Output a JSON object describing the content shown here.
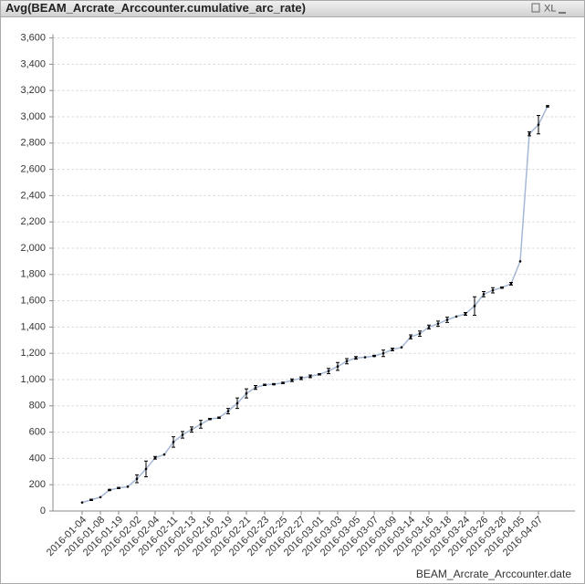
{
  "toolbar": {
    "xl": "XL"
  },
  "chart_data": {
    "type": "line",
    "title": "Avg(BEAM_Arcrate_Arccounter.cumulative_arc_rate)",
    "x_label": "BEAM_Arcrate_Arccounter.date",
    "categories": [
      "2016-01-04",
      null,
      "2016-01-08",
      null,
      "2016-01-19",
      null,
      "2016-02-02",
      null,
      "2016-02-04",
      null,
      "2016-02-11",
      null,
      "2016-02-13",
      null,
      "2016-02-16",
      null,
      "2016-02-19",
      null,
      "2016-02-21",
      null,
      "2016-02-23",
      null,
      "2016-02-25",
      null,
      "2016-02-27",
      null,
      "2016-03-01",
      null,
      "2016-03-03",
      null,
      "2016-03-05",
      null,
      "2016-03-07",
      null,
      "2016-03-09",
      null,
      "2016-03-14",
      null,
      "2016-03-16",
      null,
      "2016-03-18",
      null,
      "2016-03-24",
      null,
      "2016-03-26",
      null,
      "2016-03-28",
      null,
      "2016-04-05",
      null,
      "2016-04-07",
      null
    ],
    "values": [
      65,
      85,
      105,
      160,
      175,
      185,
      245,
      320,
      405,
      430,
      525,
      580,
      620,
      660,
      700,
      710,
      760,
      820,
      895,
      940,
      960,
      965,
      975,
      995,
      1010,
      1025,
      1040,
      1065,
      1100,
      1140,
      1165,
      1170,
      1180,
      1200,
      1230,
      1245,
      1325,
      1350,
      1400,
      1425,
      1455,
      1480,
      1500,
      1560,
      1650,
      1680,
      1700,
      1730,
      1900,
      2870,
      2940,
      3080
    ],
    "errors": [
      0,
      5,
      0,
      5,
      5,
      0,
      30,
      60,
      10,
      0,
      40,
      25,
      20,
      30,
      5,
      5,
      20,
      40,
      35,
      15,
      5,
      5,
      5,
      10,
      10,
      10,
      5,
      20,
      30,
      20,
      10,
      0,
      5,
      25,
      10,
      0,
      15,
      20,
      15,
      20,
      20,
      0,
      10,
      70,
      20,
      20,
      5,
      10,
      0,
      15,
      70,
      5
    ],
    "color": "#a6b8d6",
    "ylim": [
      0,
      3600
    ],
    "yticks": [
      0,
      200,
      400,
      600,
      800,
      {
        "value": 1000,
        "label": "1,000"
      },
      {
        "value": 1200,
        "label": "1,200"
      },
      {
        "value": 1400,
        "label": "1,400"
      },
      {
        "value": 1600,
        "label": "1,600"
      },
      {
        "value": 1800,
        "label": "1,800"
      },
      {
        "value": 2000,
        "label": "2,000"
      },
      {
        "value": 2200,
        "label": "2,200"
      },
      {
        "value": 2400,
        "label": "2,400"
      },
      {
        "value": 2600,
        "label": "2,600"
      },
      {
        "value": 2800,
        "label": "2,800"
      },
      {
        "value": 3000,
        "label": "3,000"
      },
      {
        "value": 3200,
        "label": "3,200"
      },
      {
        "value": 3400,
        "label": "3,400"
      },
      {
        "value": 3600,
        "label": "3,600"
      }
    ],
    "grid": true
  }
}
